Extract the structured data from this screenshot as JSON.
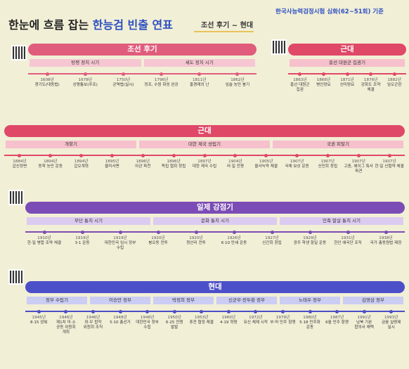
{
  "header": {
    "title_black": "한눈에 흐름 잡는",
    "title_blue": "한능검 빈출 연표",
    "range": "조선 후기 ~ 현대",
    "basis": "한국사능력검정시험 심화(62~51회) 기준"
  },
  "sections": [
    {
      "title": "조선 후기",
      "periods": [
        "탕평 정치 시기",
        "세도 정치 시기"
      ],
      "events": [
        {
          "year": "1608년",
          "label": "경기도(대동법)"
        },
        {
          "year": "1678년",
          "label": "상평통보(주조)"
        },
        {
          "year": "1750년",
          "label": "균역법(실시)"
        },
        {
          "year": "1796년",
          "label": "정조, 수원 화성 완공"
        },
        {
          "year": "1811년",
          "label": "홍경래의 난"
        },
        {
          "year": "1862년",
          "label": "임술 농민 봉기"
        }
      ]
    },
    {
      "title": "근대",
      "periods": [
        "흥선 대원군 집권기"
      ],
      "events": [
        {
          "year": "1863년",
          "label": "흥선 대원군 집권"
        },
        {
          "year": "1866년",
          "label": "병인양요"
        },
        {
          "year": "1871년",
          "label": "신미양요"
        },
        {
          "year": "1876년",
          "label": "강화도 조약 체결"
        },
        {
          "year": "1882년",
          "label": "임오군란"
        }
      ]
    },
    {
      "title": "근대",
      "periods": [
        "개항기",
        "대한 제국 성립기",
        "국권 피탈기"
      ],
      "events": [
        {
          "year": "1884년",
          "label": "갑신정변"
        },
        {
          "year": "1894년",
          "label": "동학 농민 운동"
        },
        {
          "year": "1894년",
          "label": "갑오개혁"
        },
        {
          "year": "1895년",
          "label": "을미사변"
        },
        {
          "year": "1896년",
          "label": "아관 파천"
        },
        {
          "year": "1896년",
          "label": "독립 협회 창립"
        },
        {
          "year": "1897년",
          "label": "대한 제국 수립"
        },
        {
          "year": "1904년",
          "label": "러·일 전쟁"
        },
        {
          "year": "1905년",
          "label": "을사늑약 체결"
        },
        {
          "year": "1907년",
          "label": "국채 보상 운동"
        },
        {
          "year": "1907년",
          "label": "신민회 창립"
        },
        {
          "year": "1907년",
          "label": "고종, 헤이그 특사 파견"
        },
        {
          "year": "1907년",
          "label": "한·일 신협약 체결"
        }
      ]
    },
    {
      "title": "일제 강점기",
      "periods": [
        "무단 통치 시기",
        "문화 통치 시기",
        "민족 말살 통치 시기"
      ],
      "events": [
        {
          "year": "1910년",
          "label": "한·일 병합 조약 체결"
        },
        {
          "year": "1919년",
          "label": "3·1 운동"
        },
        {
          "year": "1919년",
          "label": "대한민국 임시 정부 수립"
        },
        {
          "year": "1920년",
          "label": "봉오동 전투"
        },
        {
          "year": "1920년",
          "label": "청산리 전투"
        },
        {
          "year": "1926년",
          "label": "6·10 만세 운동"
        },
        {
          "year": "1927년",
          "label": "신간회 창립"
        },
        {
          "year": "1929년",
          "label": "광주 학생 항일 운동"
        },
        {
          "year": "1931년",
          "label": "한인 애국단 조직"
        },
        {
          "year": "1938년",
          "label": "국가 총동원법 제정"
        }
      ]
    },
    {
      "title": "현대",
      "periods": [
        "정부 수립기",
        "이승만 정부",
        "박정희 정부",
        "신군부·전두환 정부",
        "노태우 정부",
        "김영삼 정부"
      ],
      "events": [
        {
          "year": "1945년",
          "label": "8·15 광복"
        },
        {
          "year": "1946년",
          "label": "제1차 미·소 공동 위원회 개최"
        },
        {
          "year": "1946년",
          "label": "좌·우 합작 위원회 조직"
        },
        {
          "year": "1948년",
          "label": "5·10 총선거"
        },
        {
          "year": "1948년",
          "label": "대한민국 정부 수립"
        },
        {
          "year": "1950년",
          "label": "6·25 전쟁 발발"
        },
        {
          "year": "1953년",
          "label": "휴전 협정 체결"
        },
        {
          "year": "1960년",
          "label": "4·19 혁명"
        },
        {
          "year": "1972년",
          "label": "유신 체제 시작"
        },
        {
          "year": "1979년",
          "label": "부·마 민주 항쟁"
        },
        {
          "year": "1980년",
          "label": "5·18 민주화 운동"
        },
        {
          "year": "1987년",
          "label": "6월 민주 항쟁"
        },
        {
          "year": "1991년",
          "label": "남북 기본 합의서 채택"
        },
        {
          "year": "1993년",
          "label": "금융 실명제 실시"
        }
      ]
    }
  ]
}
